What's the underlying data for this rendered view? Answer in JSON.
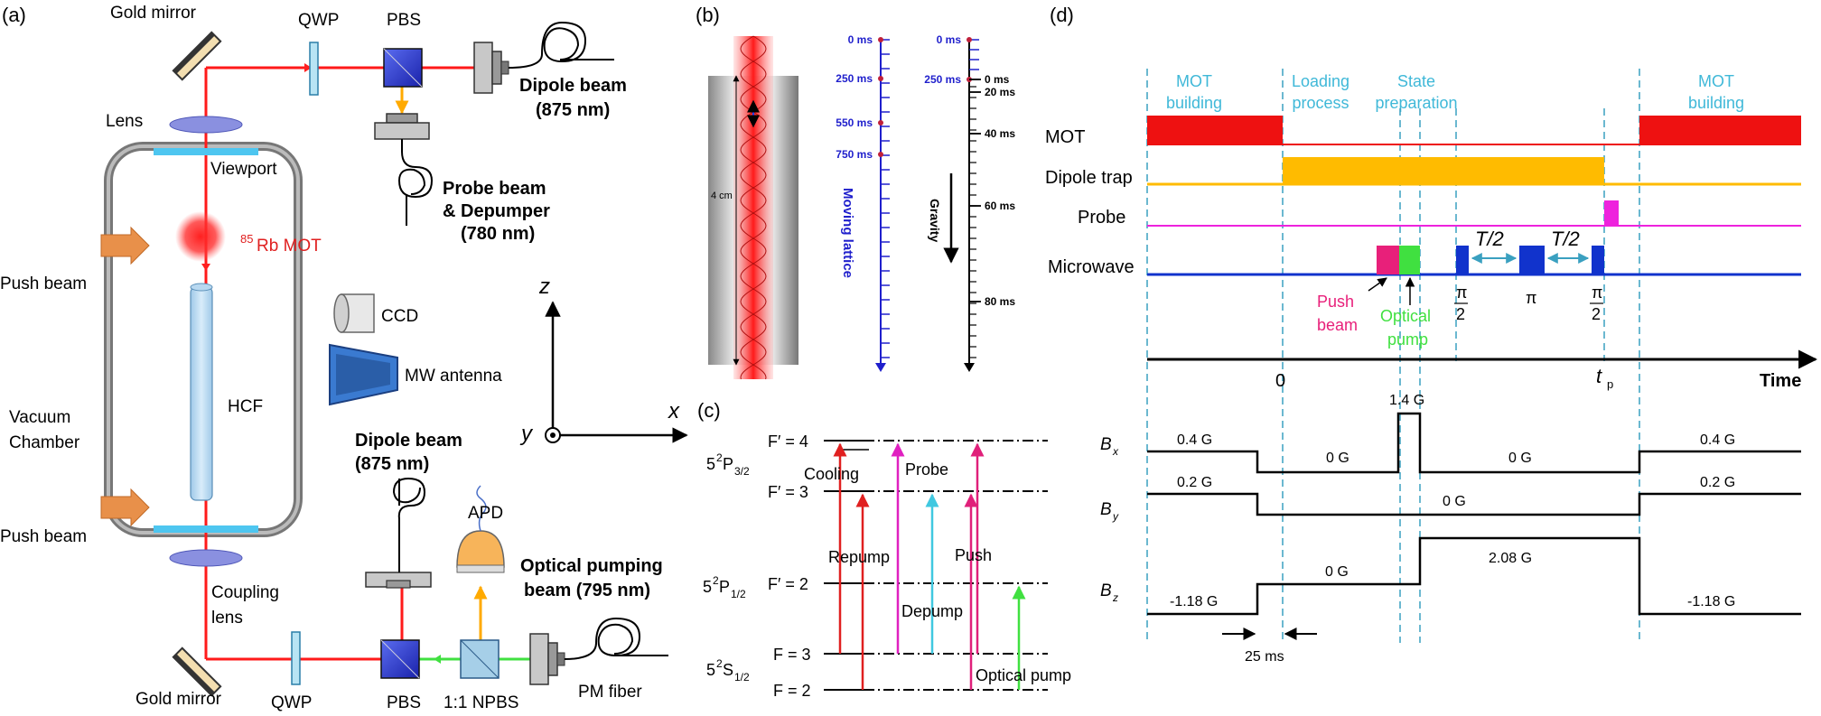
{
  "panels": {
    "a": "(a)",
    "b": "(b)",
    "c": "(c)",
    "d": "(d)"
  },
  "setup": {
    "gold_mirror_top": "Gold mirror",
    "qwp_top": "QWP",
    "pbs_top": "PBS",
    "dipole_beam_top_1": "Dipole beam",
    "dipole_beam_top_2": "(875 nm)",
    "lens": "Lens",
    "viewport": "Viewport",
    "probe_beam_1": "Probe beam",
    "probe_beam_2": "& Depumper",
    "probe_beam_3": "(780 nm)",
    "mot_sup": "85",
    "mot": "Rb MOT",
    "push_beam_top": "Push beam",
    "push_beam_bottom": "Push beam",
    "ccd": "CCD",
    "mw_antenna": "MW antenna",
    "hcf": "HCF",
    "vacuum_1": "Vacuum",
    "vacuum_2": "Chamber",
    "dipole_beam_bottom_1": "Dipole beam",
    "dipole_beam_bottom_2": "(875 nm)",
    "apd": "APD",
    "optical_pumping_1": "Optical pumping",
    "optical_pumping_2": "beam (795 nm)",
    "coupling_1": "Coupling",
    "coupling_2": "lens",
    "gold_mirror_bottom": "Gold mirror",
    "qwp_bottom": "QWP",
    "pbs_bottom": "PBS",
    "npbs": "1:1 NPBS",
    "pm_fiber": "PM fiber",
    "axis_z": "z",
    "axis_x": "x",
    "axis_y": "y"
  },
  "lattice": {
    "length": "4 cm",
    "moving_label": "Moving lattice",
    "gravity_label": "Gravity",
    "moving_ticks": [
      "0 ms",
      "250 ms",
      "550 ms",
      "750 ms"
    ],
    "gravity_ticks_blue": [
      "0 ms",
      "250 ms"
    ],
    "gravity_ticks_black": [
      "0 ms",
      "20 ms",
      "40 ms",
      "60 ms",
      "80 ms"
    ]
  },
  "levels": {
    "f4": "F′ = 4",
    "f3p": "F′ = 3",
    "f2p": "F′ = 2",
    "f3": "F = 3",
    "f2": "F = 2",
    "p32_a": "5",
    "p32_b": "2",
    "p32_c": "P",
    "p32_d": "3/2",
    "p12_a": "5",
    "p12_b": "2",
    "p12_c": "P",
    "p12_d": "1/2",
    "s12_a": "5",
    "s12_b": "2",
    "s12_c": "S",
    "s12_d": "1/2",
    "cooling": "Cooling",
    "probe": "Probe",
    "repump": "Repump",
    "push": "Push",
    "depump": "Depump",
    "optical_pump": "Optical pump",
    "colors": {
      "cooling": "#e02020",
      "repump": "#e02020",
      "probe": "#e020c0",
      "depump": "#40c8e0",
      "push": "#e0207a",
      "optical_pump": "#40e040"
    }
  },
  "timing": {
    "phases": [
      "MOT",
      "building",
      "Loading",
      "process",
      "State",
      "preparation",
      "MOT",
      "building"
    ],
    "channels": [
      "MOT",
      "Dipole trap",
      "Probe",
      "Microwave"
    ],
    "push_beam_1": "Push",
    "push_beam_2": "beam",
    "optical_pump_1": "Optical",
    "optical_pump_2": "pump",
    "half_t": "T/2",
    "pi": "π",
    "two": "2",
    "zero": "0",
    "tp": "t",
    "tp_sub": "p",
    "time": "Time",
    "b_fields": [
      "B",
      "B",
      "B"
    ],
    "b_subs": [
      "x",
      "y",
      "z"
    ],
    "bx_values": [
      "0.4 G",
      "0 G",
      "1.4 G",
      "0 G",
      "0.4 G"
    ],
    "by_values": [
      "0.2 G",
      "0 G",
      "0.2 G"
    ],
    "bz_values": [
      "-1.18 G",
      "0 G",
      "2.08 G",
      "-1.18 G"
    ],
    "delay": "25 ms",
    "colors": {
      "mot": "#ee1111",
      "dipole": "#ffbb00",
      "probe": "#ee22dd",
      "microwave": "#1133cc",
      "push": "#e8207a",
      "optical_pump": "#40e040"
    }
  }
}
